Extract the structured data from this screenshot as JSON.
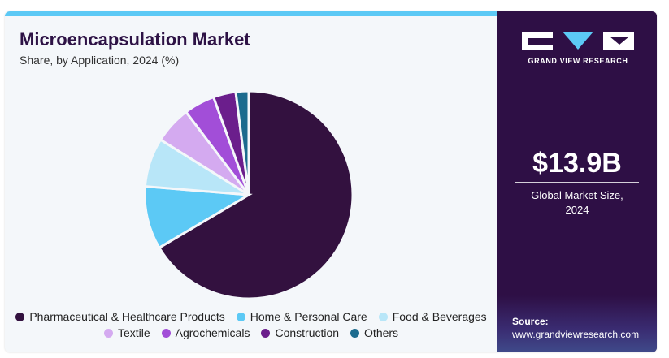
{
  "title": "Microencapsulation Market",
  "subtitle": "Share, by Application, 2024 (%)",
  "chart_data": {
    "type": "pie",
    "title": "Microencapsulation Market",
    "subtitle": "Share, by Application, 2024 (%)",
    "start_angle_deg": 0,
    "direction": "clockwise",
    "legend_position": "bottom",
    "slices": [
      {
        "label": "Pharmaceutical & Healthcare Products",
        "value": 66.5,
        "color": "#33113f"
      },
      {
        "label": "Home & Personal Care",
        "value": 9.8,
        "color": "#5cc9f5"
      },
      {
        "label": "Food & Beverages",
        "value": 7.6,
        "color": "#b8e6f8"
      },
      {
        "label": "Textile",
        "value": 5.8,
        "color": "#d4aaf0"
      },
      {
        "label": "Agrochemicals",
        "value": 4.8,
        "color": "#a24ed8"
      },
      {
        "label": "Construction",
        "value": 3.5,
        "color": "#6b1e8c"
      },
      {
        "label": "Others",
        "value": 2.0,
        "color": "#1c6b8e"
      }
    ]
  },
  "legend": {
    "row1": [
      {
        "label": "Pharmaceutical & Healthcare Products",
        "color": "#33113f"
      },
      {
        "label": "Home & Personal Care",
        "color": "#5cc9f5"
      },
      {
        "label": "Food & Beverages",
        "color": "#b8e6f8"
      }
    ],
    "row2": [
      {
        "label": "Textile",
        "color": "#d4aaf0"
      },
      {
        "label": "Agrochemicals",
        "color": "#a24ed8"
      },
      {
        "label": "Construction",
        "color": "#6b1e8c"
      },
      {
        "label": "Others",
        "color": "#1c6b8e"
      }
    ]
  },
  "sidebar": {
    "brand": "GRAND VIEW RESEARCH",
    "market_value": "$13.9B",
    "market_label_line1": "Global Market Size,",
    "market_label_line2": "2024",
    "source_title": "Source:",
    "source_url": "www.grandviewresearch.com"
  },
  "colors": {
    "accent": "#5cc9f5",
    "panel": "#2e0f45",
    "title": "#2d1245"
  }
}
